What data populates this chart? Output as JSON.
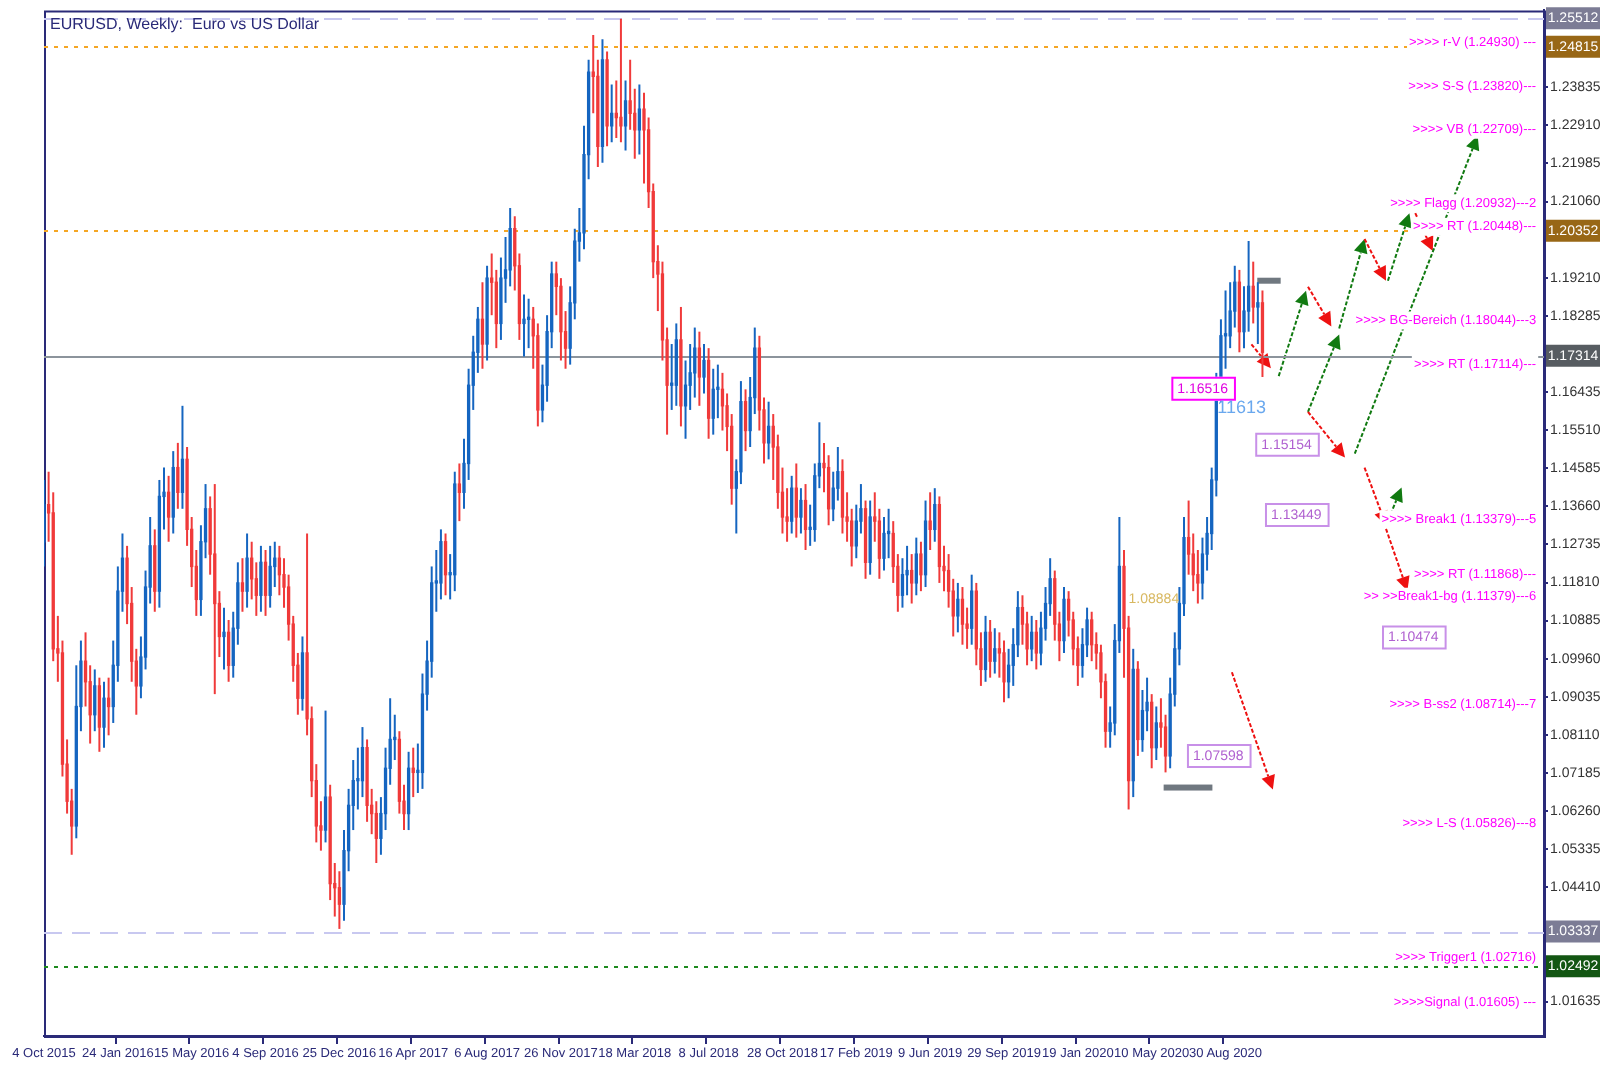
{
  "chart_data": {
    "type": "candlestick",
    "title": "EURUSD, Weekly:  Euro vs US Dollar",
    "categories": [
      "4 Oct 2015",
      null,
      null,
      null,
      null,
      null,
      null,
      null,
      null,
      null,
      null,
      null,
      null,
      null,
      null,
      null,
      "24 Jan 2016",
      null,
      null,
      null,
      null,
      null,
      null,
      null,
      null,
      null,
      null,
      null,
      null,
      null,
      null,
      null,
      "15 May 2016",
      null,
      null,
      null,
      null,
      null,
      null,
      null,
      null,
      null,
      null,
      null,
      null,
      null,
      null,
      null,
      "4 Sep 2016",
      null,
      null,
      null,
      null,
      null,
      null,
      null,
      null,
      null,
      null,
      null,
      null,
      null,
      null,
      null,
      "25 Dec 2016",
      null,
      null,
      null,
      null,
      null,
      null,
      null,
      null,
      null,
      null,
      null,
      null,
      null,
      null,
      null,
      "16 Apr 2017",
      null,
      null,
      null,
      null,
      null,
      null,
      null,
      null,
      null,
      null,
      null,
      null,
      null,
      null,
      null,
      "6 Aug 2017",
      null,
      null,
      null,
      null,
      null,
      null,
      null,
      null,
      null,
      null,
      null,
      null,
      null,
      null,
      null,
      "26 Nov 2017",
      null,
      null,
      null,
      null,
      null,
      null,
      null,
      null,
      null,
      null,
      null,
      null,
      null,
      null,
      null,
      "18 Mar 2018",
      null,
      null,
      null,
      null,
      null,
      null,
      null,
      null,
      null,
      null,
      null,
      null,
      null,
      null,
      null,
      "8 Jul 2018",
      null,
      null,
      null,
      null,
      null,
      null,
      null,
      null,
      null,
      null,
      null,
      null,
      null,
      null,
      null,
      "28 Oct 2018",
      null,
      null,
      null,
      null,
      null,
      null,
      null,
      null,
      null,
      null,
      null,
      null,
      null,
      null,
      null,
      "17 Feb 2019",
      null,
      null,
      null,
      null,
      null,
      null,
      null,
      null,
      null,
      null,
      null,
      null,
      null,
      null,
      null,
      "9 Jun 2019",
      null,
      null,
      null,
      null,
      null,
      null,
      null,
      null,
      null,
      null,
      null,
      null,
      null,
      null,
      null,
      "29 Sep 2019",
      null,
      null,
      null,
      null,
      null,
      null,
      null,
      null,
      null,
      null,
      null,
      null,
      null,
      null,
      null,
      "19 Jan 2020",
      null,
      null,
      null,
      null,
      null,
      null,
      null,
      null,
      null,
      null,
      null,
      null,
      null,
      null,
      null,
      "10 May 2020",
      null,
      null,
      null,
      null,
      null,
      null,
      null,
      null,
      null,
      null,
      null,
      null,
      null,
      null,
      null,
      "30 Aug 2020",
      null,
      null,
      null,
      null,
      null,
      null,
      null,
      null,
      null,
      null,
      null,
      null,
      null,
      null,
      null,
      null,
      null,
      null,
      null,
      null,
      null,
      null,
      null,
      null,
      null,
      null,
      null,
      null,
      null,
      null,
      null,
      null,
      null,
      null,
      null,
      null,
      null,
      null,
      null,
      null,
      null,
      null,
      null,
      null,
      null,
      null,
      null,
      null,
      null,
      null,
      null,
      null,
      null,
      null,
      null,
      null,
      null,
      null,
      null,
      null,
      null,
      null,
      null,
      null,
      null,
      null,
      null,
      null,
      null
    ],
    "ohlc": [
      [
        1.128,
        1.143,
        1.122,
        1.137
      ],
      [
        1.137,
        1.145,
        1.128,
        1.135
      ],
      [
        1.135,
        1.14,
        1.099,
        1.102
      ],
      [
        1.102,
        1.11,
        1.094,
        1.101
      ],
      [
        1.101,
        1.104,
        1.071,
        1.074
      ],
      [
        1.074,
        1.08,
        1.062,
        1.065
      ],
      [
        1.065,
        1.068,
        1.052,
        1.059
      ],
      [
        1.059,
        1.098,
        1.056,
        1.088
      ],
      [
        1.088,
        1.104,
        1.082,
        1.099
      ],
      [
        1.099,
        1.106,
        1.088,
        1.094
      ],
      [
        1.094,
        1.098,
        1.079,
        1.086
      ],
      [
        1.086,
        1.097,
        1.082,
        1.093
      ],
      [
        1.093,
        1.095,
        1.077,
        1.083
      ],
      [
        1.083,
        1.094,
        1.078,
        1.09
      ],
      [
        1.09,
        1.095,
        1.081,
        1.088
      ],
      [
        1.088,
        1.104,
        1.084,
        1.098
      ],
      [
        1.098,
        1.122,
        1.094,
        1.116
      ],
      [
        1.116,
        1.13,
        1.111,
        1.124
      ],
      [
        1.124,
        1.127,
        1.108,
        1.113
      ],
      [
        1.113,
        1.117,
        1.094,
        1.099
      ],
      [
        1.099,
        1.102,
        1.086,
        1.093
      ],
      [
        1.093,
        1.105,
        1.09,
        1.1
      ],
      [
        1.1,
        1.121,
        1.097,
        1.117
      ],
      [
        1.117,
        1.134,
        1.113,
        1.127
      ],
      [
        1.127,
        1.131,
        1.111,
        1.116
      ],
      [
        1.116,
        1.143,
        1.112,
        1.139
      ],
      [
        1.139,
        1.146,
        1.131,
        1.14
      ],
      [
        1.14,
        1.144,
        1.128,
        1.134
      ],
      [
        1.134,
        1.15,
        1.13,
        1.146
      ],
      [
        1.146,
        1.152,
        1.136,
        1.14
      ],
      [
        1.14,
        1.161,
        1.136,
        1.148
      ],
      [
        1.148,
        1.151,
        1.127,
        1.131
      ],
      [
        1.131,
        1.134,
        1.117,
        1.122
      ],
      [
        1.122,
        1.126,
        1.11,
        1.114
      ],
      [
        1.114,
        1.132,
        1.11,
        1.128
      ],
      [
        1.128,
        1.142,
        1.124,
        1.136
      ],
      [
        1.136,
        1.139,
        1.12,
        1.125
      ],
      [
        1.125,
        1.142,
        1.091,
        1.113
      ],
      [
        1.113,
        1.116,
        1.1,
        1.105
      ],
      [
        1.105,
        1.112,
        1.097,
        1.106
      ],
      [
        1.106,
        1.109,
        1.094,
        1.098
      ],
      [
        1.098,
        1.111,
        1.095,
        1.107
      ],
      [
        1.107,
        1.123,
        1.103,
        1.118
      ],
      [
        1.118,
        1.124,
        1.111,
        1.116
      ],
      [
        1.116,
        1.13,
        1.112,
        1.124
      ],
      [
        1.124,
        1.128,
        1.114,
        1.119
      ],
      [
        1.119,
        1.123,
        1.11,
        1.115
      ],
      [
        1.115,
        1.127,
        1.111,
        1.123
      ],
      [
        1.123,
        1.126,
        1.11,
        1.115
      ],
      [
        1.115,
        1.127,
        1.112,
        1.122
      ],
      [
        1.122,
        1.128,
        1.117,
        1.124
      ],
      [
        1.124,
        1.127,
        1.115,
        1.12
      ],
      [
        1.12,
        1.124,
        1.112,
        1.117
      ],
      [
        1.117,
        1.12,
        1.104,
        1.108
      ],
      [
        1.108,
        1.11,
        1.094,
        1.098
      ],
      [
        1.098,
        1.101,
        1.086,
        1.09
      ],
      [
        1.09,
        1.105,
        1.087,
        1.101
      ],
      [
        1.101,
        1.13,
        1.081,
        1.085
      ],
      [
        1.085,
        1.088,
        1.066,
        1.07
      ],
      [
        1.07,
        1.074,
        1.055,
        1.059
      ],
      [
        1.059,
        1.065,
        1.053,
        1.058
      ],
      [
        1.058,
        1.087,
        1.055,
        1.066
      ],
      [
        1.066,
        1.069,
        1.041,
        1.045
      ],
      [
        1.045,
        1.05,
        1.037,
        1.044
      ],
      [
        1.044,
        1.048,
        1.034,
        1.04
      ],
      [
        1.04,
        1.058,
        1.036,
        1.053
      ],
      [
        1.053,
        1.068,
        1.048,
        1.064
      ],
      [
        1.064,
        1.075,
        1.058,
        1.07
      ],
      [
        1.07,
        1.078,
        1.063,
        1.07
      ],
      [
        1.07,
        1.083,
        1.066,
        1.078
      ],
      [
        1.078,
        1.08,
        1.06,
        1.064
      ],
      [
        1.064,
        1.068,
        1.057,
        1.062
      ],
      [
        1.062,
        1.065,
        1.05,
        1.056
      ],
      [
        1.056,
        1.066,
        1.052,
        1.062
      ],
      [
        1.062,
        1.078,
        1.058,
        1.073
      ],
      [
        1.073,
        1.09,
        1.069,
        1.08
      ],
      [
        1.08,
        1.086,
        1.075,
        1.08
      ],
      [
        1.08,
        1.082,
        1.062,
        1.065
      ],
      [
        1.065,
        1.069,
        1.058,
        1.062
      ],
      [
        1.062,
        1.077,
        1.058,
        1.073
      ],
      [
        1.073,
        1.078,
        1.066,
        1.072
      ],
      [
        1.072,
        1.079,
        1.067,
        1.072
      ],
      [
        1.072,
        1.096,
        1.068,
        1.091
      ],
      [
        1.091,
        1.104,
        1.087,
        1.099
      ],
      [
        1.099,
        1.122,
        1.095,
        1.118
      ],
      [
        1.118,
        1.126,
        1.111,
        1.118
      ],
      [
        1.118,
        1.131,
        1.114,
        1.128
      ],
      [
        1.128,
        1.13,
        1.115,
        1.12
      ],
      [
        1.12,
        1.125,
        1.114,
        1.12
      ],
      [
        1.12,
        1.145,
        1.116,
        1.142
      ],
      [
        1.142,
        1.147,
        1.133,
        1.14
      ],
      [
        1.14,
        1.153,
        1.136,
        1.147
      ],
      [
        1.147,
        1.17,
        1.143,
        1.166
      ],
      [
        1.166,
        1.178,
        1.16,
        1.174
      ],
      [
        1.174,
        1.185,
        1.169,
        1.182
      ],
      [
        1.182,
        1.191,
        1.17,
        1.176
      ],
      [
        1.176,
        1.195,
        1.172,
        1.192
      ],
      [
        1.192,
        1.198,
        1.183,
        1.191
      ],
      [
        1.191,
        1.194,
        1.175,
        1.181
      ],
      [
        1.181,
        1.197,
        1.177,
        1.192
      ],
      [
        1.192,
        1.202,
        1.186,
        1.194
      ],
      [
        1.194,
        1.209,
        1.19,
        1.204
      ],
      [
        1.204,
        1.207,
        1.189,
        1.195
      ],
      [
        1.195,
        1.198,
        1.177,
        1.181
      ],
      [
        1.181,
        1.188,
        1.173,
        1.182
      ],
      [
        1.182,
        1.187,
        1.175,
        1.182
      ],
      [
        1.182,
        1.185,
        1.17,
        1.178
      ],
      [
        1.178,
        1.181,
        1.156,
        1.16
      ],
      [
        1.16,
        1.171,
        1.157,
        1.166
      ],
      [
        1.166,
        1.183,
        1.162,
        1.179
      ],
      [
        1.179,
        1.196,
        1.175,
        1.193
      ],
      [
        1.193,
        1.196,
        1.183,
        1.19
      ],
      [
        1.19,
        1.192,
        1.172,
        1.179
      ],
      [
        1.179,
        1.184,
        1.17,
        1.175
      ],
      [
        1.175,
        1.19,
        1.171,
        1.186
      ],
      [
        1.186,
        1.204,
        1.182,
        1.201
      ],
      [
        1.201,
        1.209,
        1.196,
        1.203
      ],
      [
        1.203,
        1.229,
        1.199,
        1.222
      ],
      [
        1.222,
        1.245,
        1.216,
        1.242
      ],
      [
        1.242,
        1.251,
        1.232,
        1.241
      ],
      [
        1.241,
        1.245,
        1.219,
        1.224
      ],
      [
        1.224,
        1.25,
        1.22,
        1.245
      ],
      [
        1.245,
        1.247,
        1.224,
        1.229
      ],
      [
        1.229,
        1.239,
        1.225,
        1.232
      ],
      [
        1.232,
        1.24,
        1.226,
        1.231
      ],
      [
        1.231,
        1.255,
        1.225,
        1.229
      ],
      [
        1.229,
        1.24,
        1.223,
        1.235
      ],
      [
        1.235,
        1.245,
        1.228,
        1.232
      ],
      [
        1.232,
        1.238,
        1.221,
        1.228
      ],
      [
        1.228,
        1.239,
        1.222,
        1.233
      ],
      [
        1.233,
        1.237,
        1.215,
        1.228
      ],
      [
        1.228,
        1.231,
        1.209,
        1.213
      ],
      [
        1.213,
        1.215,
        1.192,
        1.196
      ],
      [
        1.196,
        1.2,
        1.184,
        1.193
      ],
      [
        1.193,
        1.196,
        1.172,
        1.177
      ],
      [
        1.177,
        1.18,
        1.154,
        1.166
      ],
      [
        1.166,
        1.176,
        1.16,
        1.166
      ],
      [
        1.166,
        1.181,
        1.161,
        1.177
      ],
      [
        1.177,
        1.185,
        1.156,
        1.161
      ],
      [
        1.161,
        1.172,
        1.153,
        1.166
      ],
      [
        1.166,
        1.176,
        1.16,
        1.169
      ],
      [
        1.169,
        1.18,
        1.163,
        1.175
      ],
      [
        1.175,
        1.179,
        1.161,
        1.168
      ],
      [
        1.168,
        1.176,
        1.164,
        1.172
      ],
      [
        1.172,
        1.175,
        1.153,
        1.158
      ],
      [
        1.158,
        1.17,
        1.154,
        1.165
      ],
      [
        1.165,
        1.171,
        1.158,
        1.165
      ],
      [
        1.165,
        1.169,
        1.155,
        1.161
      ],
      [
        1.161,
        1.164,
        1.15,
        1.156
      ],
      [
        1.156,
        1.159,
        1.137,
        1.141
      ],
      [
        1.141,
        1.148,
        1.13,
        1.145
      ],
      [
        1.145,
        1.167,
        1.142,
        1.162
      ],
      [
        1.162,
        1.165,
        1.15,
        1.155
      ],
      [
        1.155,
        1.168,
        1.151,
        1.163
      ],
      [
        1.163,
        1.18,
        1.159,
        1.175
      ],
      [
        1.175,
        1.178,
        1.155,
        1.16
      ],
      [
        1.16,
        1.163,
        1.147,
        1.152
      ],
      [
        1.152,
        1.162,
        1.148,
        1.156
      ],
      [
        1.156,
        1.159,
        1.143,
        1.151
      ],
      [
        1.151,
        1.154,
        1.136,
        1.14
      ],
      [
        1.14,
        1.146,
        1.13,
        1.134
      ],
      [
        1.134,
        1.141,
        1.128,
        1.133
      ],
      [
        1.133,
        1.144,
        1.13,
        1.141
      ],
      [
        1.141,
        1.147,
        1.129,
        1.134
      ],
      [
        1.134,
        1.141,
        1.13,
        1.138
      ],
      [
        1.138,
        1.142,
        1.126,
        1.131
      ],
      [
        1.131,
        1.137,
        1.127,
        1.131
      ],
      [
        1.131,
        1.147,
        1.128,
        1.144
      ],
      [
        1.144,
        1.157,
        1.141,
        1.147
      ],
      [
        1.147,
        1.152,
        1.14,
        1.146
      ],
      [
        1.146,
        1.149,
        1.132,
        1.136
      ],
      [
        1.136,
        1.145,
        1.133,
        1.141
      ],
      [
        1.141,
        1.151,
        1.138,
        1.145
      ],
      [
        1.145,
        1.148,
        1.13,
        1.134
      ],
      [
        1.134,
        1.14,
        1.128,
        1.133
      ],
      [
        1.133,
        1.136,
        1.122,
        1.127
      ],
      [
        1.127,
        1.137,
        1.124,
        1.133
      ],
      [
        1.133,
        1.142,
        1.13,
        1.136
      ],
      [
        1.136,
        1.138,
        1.119,
        1.123
      ],
      [
        1.123,
        1.138,
        1.12,
        1.134
      ],
      [
        1.134,
        1.14,
        1.128,
        1.133
      ],
      [
        1.133,
        1.136,
        1.119,
        1.124
      ],
      [
        1.124,
        1.134,
        1.121,
        1.13
      ],
      [
        1.13,
        1.136,
        1.124,
        1.13
      ],
      [
        1.13,
        1.133,
        1.118,
        1.122
      ],
      [
        1.122,
        1.125,
        1.111,
        1.115
      ],
      [
        1.115,
        1.124,
        1.112,
        1.12
      ],
      [
        1.12,
        1.127,
        1.115,
        1.121
      ],
      [
        1.121,
        1.125,
        1.113,
        1.118
      ],
      [
        1.118,
        1.129,
        1.115,
        1.125
      ],
      [
        1.125,
        1.128,
        1.116,
        1.12
      ],
      [
        1.12,
        1.138,
        1.117,
        1.133
      ],
      [
        1.133,
        1.14,
        1.126,
        1.131
      ],
      [
        1.131,
        1.141,
        1.128,
        1.137
      ],
      [
        1.137,
        1.139,
        1.118,
        1.122
      ],
      [
        1.122,
        1.127,
        1.116,
        1.121
      ],
      [
        1.121,
        1.125,
        1.112,
        1.116
      ],
      [
        1.116,
        1.119,
        1.105,
        1.11
      ],
      [
        1.11,
        1.118,
        1.106,
        1.114
      ],
      [
        1.114,
        1.117,
        1.103,
        1.108
      ],
      [
        1.108,
        1.112,
        1.102,
        1.107
      ],
      [
        1.107,
        1.12,
        1.103,
        1.116
      ],
      [
        1.116,
        1.118,
        1.098,
        1.102
      ],
      [
        1.102,
        1.106,
        1.093,
        1.097
      ],
      [
        1.097,
        1.11,
        1.094,
        1.106
      ],
      [
        1.106,
        1.109,
        1.095,
        1.099
      ],
      [
        1.099,
        1.107,
        1.096,
        1.102
      ],
      [
        1.102,
        1.106,
        1.095,
        1.101
      ],
      [
        1.101,
        1.104,
        1.089,
        1.094
      ],
      [
        1.094,
        1.102,
        1.09,
        1.098
      ],
      [
        1.098,
        1.107,
        1.093,
        1.103
      ],
      [
        1.103,
        1.116,
        1.1,
        1.112
      ],
      [
        1.112,
        1.115,
        1.103,
        1.108
      ],
      [
        1.108,
        1.111,
        1.098,
        1.102
      ],
      [
        1.102,
        1.11,
        1.099,
        1.106
      ],
      [
        1.106,
        1.109,
        1.097,
        1.101
      ],
      [
        1.101,
        1.111,
        1.098,
        1.107
      ],
      [
        1.107,
        1.117,
        1.104,
        1.113
      ],
      [
        1.113,
        1.124,
        1.11,
        1.119
      ],
      [
        1.119,
        1.121,
        1.104,
        1.108
      ],
      [
        1.108,
        1.111,
        1.099,
        1.104
      ],
      [
        1.104,
        1.117,
        1.101,
        1.114
      ],
      [
        1.114,
        1.116,
        1.105,
        1.109
      ],
      [
        1.109,
        1.111,
        1.098,
        1.102
      ],
      [
        1.102,
        1.105,
        1.093,
        1.098
      ],
      [
        1.098,
        1.107,
        1.095,
        1.103
      ],
      [
        1.103,
        1.112,
        1.1,
        1.109
      ],
      [
        1.109,
        1.111,
        1.099,
        1.103
      ],
      [
        1.103,
        1.106,
        1.097,
        1.101
      ],
      [
        1.101,
        1.103,
        1.09,
        1.094
      ],
      [
        1.094,
        1.096,
        1.078,
        1.082
      ],
      [
        1.082,
        1.088,
        1.078,
        1.084
      ],
      [
        1.084,
        1.108,
        1.081,
        1.104
      ],
      [
        1.104,
        1.134,
        1.101,
        1.122
      ],
      [
        1.122,
        1.126,
        1.095,
        1.107
      ],
      [
        1.107,
        1.11,
        1.063,
        1.07
      ],
      [
        1.07,
        1.102,
        1.066,
        1.097
      ],
      [
        1.097,
        1.099,
        1.076,
        1.08
      ],
      [
        1.08,
        1.092,
        1.077,
        1.087
      ],
      [
        1.087,
        1.095,
        1.082,
        1.089
      ],
      [
        1.089,
        1.091,
        1.073,
        1.078
      ],
      [
        1.078,
        1.088,
        1.075,
        1.084
      ],
      [
        1.084,
        1.09,
        1.078,
        1.083
      ],
      [
        1.083,
        1.086,
        1.072,
        1.076
      ],
      [
        1.076,
        1.095,
        1.073,
        1.091
      ],
      [
        1.091,
        1.106,
        1.088,
        1.102
      ],
      [
        1.102,
        1.117,
        1.098,
        1.113
      ],
      [
        1.113,
        1.134,
        1.11,
        1.129
      ],
      [
        1.129,
        1.138,
        1.12,
        1.125
      ],
      [
        1.125,
        1.13,
        1.116,
        1.12
      ],
      [
        1.12,
        1.126,
        1.113,
        1.118
      ],
      [
        1.118,
        1.129,
        1.114,
        1.125
      ],
      [
        1.125,
        1.134,
        1.121,
        1.13
      ],
      [
        1.13,
        1.146,
        1.126,
        1.143
      ],
      [
        1.143,
        1.169,
        1.139,
        1.166
      ],
      [
        1.166,
        1.182,
        1.162,
        1.178
      ],
      [
        1.178,
        1.189,
        1.17,
        1.178
      ],
      [
        1.178,
        1.191,
        1.175,
        1.184
      ],
      [
        1.184,
        1.195,
        1.18,
        1.191
      ],
      [
        1.191,
        1.194,
        1.174,
        1.179
      ],
      [
        1.179,
        1.19,
        1.175,
        1.184
      ],
      [
        1.184,
        1.201,
        1.179,
        1.19
      ],
      [
        1.19,
        1.196,
        1.181,
        1.185
      ],
      [
        1.185,
        1.191,
        1.176,
        1.186
      ],
      [
        1.186,
        1.189,
        1.168,
        1.174
      ],
      null,
      null,
      null,
      null,
      null,
      null,
      null,
      null,
      null,
      null,
      null,
      null,
      null,
      null,
      null,
      null,
      null,
      null,
      null,
      null,
      null,
      null,
      null,
      null,
      null,
      null,
      null,
      null,
      null,
      null,
      null,
      null,
      null,
      null,
      null,
      null,
      null,
      null,
      null,
      null,
      null,
      null,
      null,
      null,
      null,
      null,
      null,
      null,
      null,
      null,
      null,
      null,
      null,
      null,
      null,
      null,
      null,
      null,
      null,
      null,
      null
    ],
    "ylim": [
      1.008,
      1.257
    ],
    "yticks": [
      1.01635,
      {
        "value": 1.0441,
        "label": "1.04410"
      },
      1.05335,
      {
        "value": 1.0626,
        "label": "1.06260"
      },
      1.07185,
      {
        "value": 1.0811,
        "label": "1.08110"
      },
      1.09035,
      {
        "value": 1.0996,
        "label": "1.09960"
      },
      1.10885,
      {
        "value": 1.1181,
        "label": "1.11810"
      },
      1.12735,
      {
        "value": 1.1366,
        "label": "1.13660"
      },
      1.14585,
      {
        "value": 1.1551,
        "label": "1.15510"
      },
      1.16435,
      1.18285,
      {
        "value": 1.1921,
        "label": "1.19210"
      },
      {
        "value": 1.2106,
        "label": "1.21060"
      },
      1.21985,
      {
        "value": 1.2291,
        "label": "1.22910"
      },
      1.23835
    ],
    "ref_lines": [
      {
        "axis": "y",
        "value": 1.25512,
        "label": "1.25512",
        "color": "#c8c8f0",
        "line_style": "dashed"
      },
      {
        "axis": "y",
        "value": 1.24815,
        "label": "1.24815",
        "color": "#f5a623",
        "line_style": "dotted"
      },
      {
        "axis": "y",
        "value": 1.20352,
        "label": "1.20352",
        "color": "#f5a623",
        "line_style": "dotted"
      },
      {
        "axis": "y",
        "value": 1.17314,
        "label": "1.17314",
        "color": "#8c949c",
        "line_style": "solid"
      },
      {
        "axis": "y",
        "value": 1.03337,
        "label": "1.03337",
        "color": "#c8c8f0",
        "line_style": "dashed"
      },
      {
        "axis": "y",
        "value": 1.02492,
        "label": "1.02492",
        "color": "#1e8a1e",
        "line_style": "dotted"
      }
    ],
    "annotations": [
      {
        "text": ">>>> r-V (1.24930) ---",
        "y": 1.2493
      },
      ">>>> S-S (1.23820)---",
      ">>>> VB (1.22709)---",
      ">>>> Flagg (1.20932)---2",
      {
        "text": ">>>> RT (1.20448)---",
        "y": 1.20448
      },
      ">>>> BG-Bereich (1.18044)---3",
      {
        "text": ">>>> RT (1.17114)---",
        "y": 1.17114
      },
      ">>>> Break1 (1.13379)---5",
      ">>>> RT (1.11868)---",
      ">> >>Break1-bg (1.11379)---6",
      ">>>> B-ss2 (1.08714)---7",
      ">>>> L-S (1.05826)---8",
      {
        "text": ">>>> Trigger1 (1.02716)",
        "y": 1.02716
      },
      ">>>>Signal (1.01605) ---",
      {
        "text": "1.16516",
        "y": 1.16516
      },
      "11613",
      {
        "text": "1.15154",
        "y": 1.15154
      },
      {
        "text": "1.13449",
        "y": 1.13449
      },
      {
        "text": "1.10474",
        "y": 1.10474
      },
      {
        "text": "1.07598",
        "y": 1.07598
      },
      "1.08884"
    ]
  }
}
